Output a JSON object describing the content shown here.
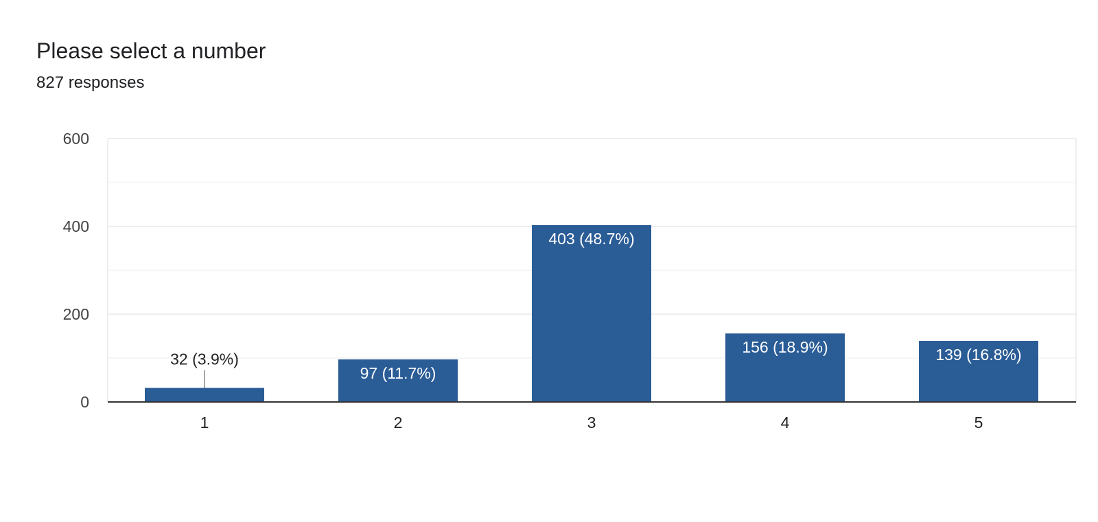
{
  "question": {
    "title": "Please select a number",
    "responses_label": "827 responses"
  },
  "colors": {
    "bar": "#2a5c96",
    "inside_label": "#ffffff",
    "outside_label": "#202124",
    "tick_label": "#444444",
    "gridline": "#eeeeee",
    "axis": "#333333"
  },
  "chart_data": {
    "type": "bar",
    "title": "",
    "xlabel": "",
    "ylabel": "",
    "categories": [
      "1",
      "2",
      "3",
      "4",
      "5"
    ],
    "values": [
      32,
      97,
      403,
      156,
      139
    ],
    "data_labels": [
      "32 (3.9%)",
      "97 (11.7%)",
      "403 (48.7%)",
      "156 (18.9%)",
      "139 (16.8%)"
    ],
    "ylim": [
      0,
      600
    ],
    "y_ticks": [
      0,
      200,
      400,
      600
    ],
    "minor_gridlines": [
      100,
      300,
      500
    ],
    "grid": true,
    "legend": "none"
  }
}
